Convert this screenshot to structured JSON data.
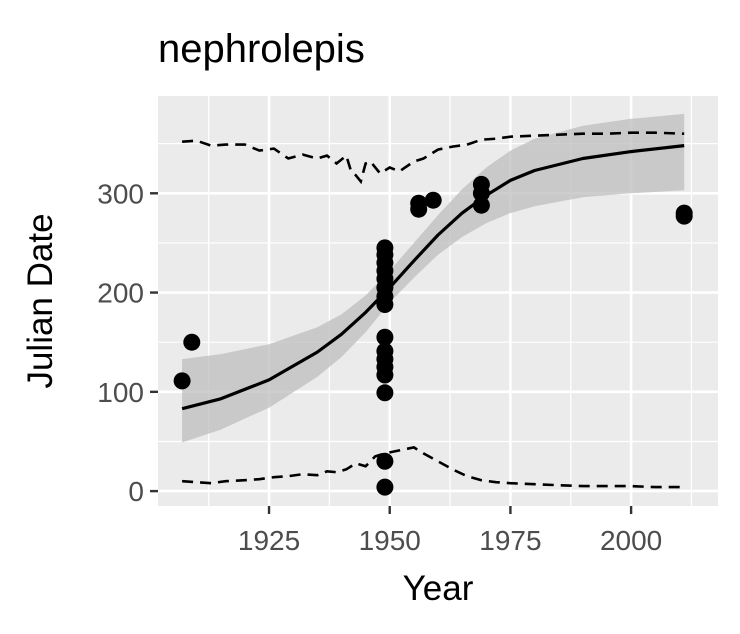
{
  "chart_data": {
    "type": "scatter",
    "title": "nephrolepis",
    "xlabel": "Year",
    "ylabel": "Julian Date",
    "xlim": [
      1902,
      2018
    ],
    "ylim": [
      -15,
      398
    ],
    "x_ticks": [
      1925,
      1950,
      1975,
      2000
    ],
    "x_tick_labels": [
      "1925",
      "1950",
      "1975",
      "2000"
    ],
    "y_ticks": [
      0,
      100,
      200,
      300
    ],
    "y_tick_labels": [
      "0",
      "100",
      "200",
      "300"
    ],
    "grid": true,
    "panel_background": "#ebebeb",
    "grid_color": "#ffffff",
    "point_color": "#000000",
    "fit_line_color": "#000000",
    "ribbon_color": "#bdbdbd",
    "points": [
      {
        "x": 1907,
        "y": 111
      },
      {
        "x": 1909,
        "y": 150
      },
      {
        "x": 1949,
        "y": 4
      },
      {
        "x": 1949,
        "y": 30
      },
      {
        "x": 1949,
        "y": 99
      },
      {
        "x": 1949,
        "y": 117
      },
      {
        "x": 1949,
        "y": 125
      },
      {
        "x": 1949,
        "y": 133
      },
      {
        "x": 1949,
        "y": 141
      },
      {
        "x": 1949,
        "y": 155
      },
      {
        "x": 1949,
        "y": 188
      },
      {
        "x": 1949,
        "y": 196
      },
      {
        "x": 1949,
        "y": 205
      },
      {
        "x": 1949,
        "y": 214
      },
      {
        "x": 1949,
        "y": 222
      },
      {
        "x": 1949,
        "y": 230
      },
      {
        "x": 1949,
        "y": 238
      },
      {
        "x": 1949,
        "y": 245
      },
      {
        "x": 1956,
        "y": 284
      },
      {
        "x": 1956,
        "y": 290
      },
      {
        "x": 1959,
        "y": 293
      },
      {
        "x": 1969,
        "y": 288
      },
      {
        "x": 1969,
        "y": 300
      },
      {
        "x": 1969,
        "y": 309
      },
      {
        "x": 2011,
        "y": 277
      },
      {
        "x": 2011,
        "y": 280
      }
    ],
    "fit_line": {
      "x": [
        1907,
        1915,
        1925,
        1935,
        1940,
        1945,
        1950,
        1955,
        1960,
        1965,
        1970,
        1975,
        1980,
        1990,
        2000,
        2011
      ],
      "y": [
        83,
        93,
        112,
        140,
        158,
        180,
        205,
        232,
        258,
        280,
        298,
        313,
        323,
        335,
        342,
        348
      ]
    },
    "confidence_band": {
      "x": [
        1907,
        1915,
        1925,
        1935,
        1940,
        1945,
        1950,
        1955,
        1960,
        1965,
        1970,
        1975,
        1980,
        1990,
        2000,
        2011
      ],
      "lower": [
        49,
        62,
        84,
        115,
        135,
        160,
        190,
        215,
        238,
        256,
        270,
        280,
        287,
        296,
        300,
        303
      ],
      "upper": [
        133,
        138,
        148,
        165,
        178,
        197,
        222,
        250,
        278,
        304,
        326,
        343,
        355,
        368,
        375,
        380
      ]
    },
    "upper_dashed": {
      "x": [
        1907,
        1910,
        1913,
        1916,
        1920,
        1923,
        1926,
        1929,
        1932,
        1935,
        1937,
        1939,
        1941,
        1942,
        1943,
        1944,
        1945,
        1946,
        1948,
        1950,
        1952,
        1955,
        1957,
        1960,
        1963,
        1966,
        1969,
        1972,
        1975,
        1980,
        1985,
        1990,
        1995,
        2000,
        2005,
        2011
      ],
      "y": [
        352,
        353,
        348,
        349,
        349,
        343,
        345,
        335,
        339,
        335,
        338,
        330,
        338,
        322,
        318,
        312,
        330,
        332,
        320,
        326,
        322,
        332,
        335,
        344,
        347,
        349,
        354,
        355,
        357,
        358,
        359,
        360,
        360,
        361,
        361,
        360
      ]
    },
    "lower_dashed": {
      "x": [
        1907,
        1910,
        1913,
        1916,
        1920,
        1923,
        1926,
        1929,
        1932,
        1935,
        1937,
        1939,
        1941,
        1943,
        1945,
        1947,
        1949,
        1951,
        1953,
        1955,
        1957,
        1960,
        1963,
        1966,
        1969,
        1972,
        1975,
        1980,
        1985,
        1990,
        1995,
        2000,
        2005,
        2011
      ],
      "y": [
        10,
        9,
        8,
        10,
        11,
        12,
        14,
        15,
        17,
        16,
        20,
        19,
        22,
        28,
        25,
        35,
        38,
        40,
        42,
        44,
        38,
        30,
        22,
        15,
        11,
        9,
        8,
        7,
        6,
        5,
        5,
        5,
        4,
        4
      ]
    }
  }
}
